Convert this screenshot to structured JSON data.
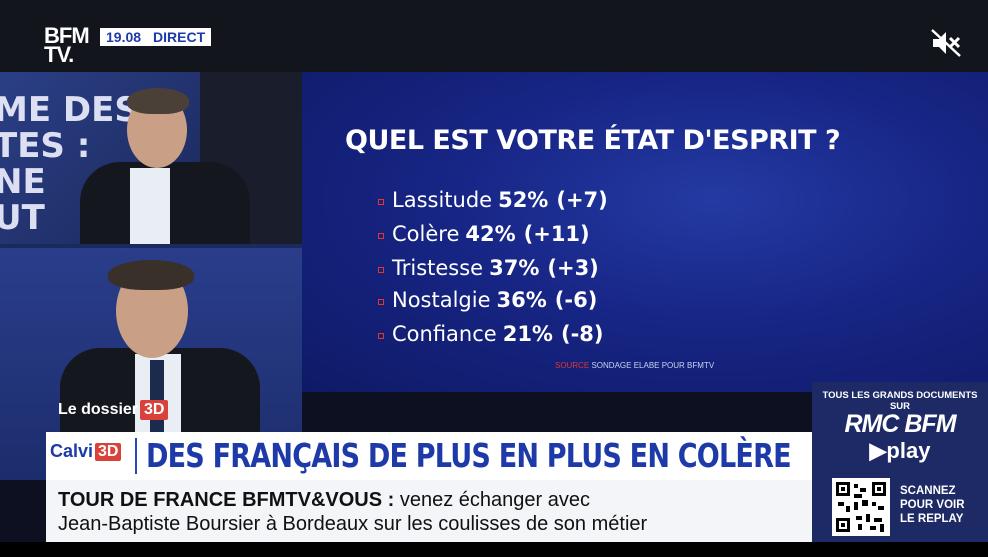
{
  "channel": {
    "logo_line1": "BFM",
    "logo_line2": "TV.",
    "time": "19.08",
    "live_label": "DIRECT",
    "mute_icon": "speaker-muted-icon"
  },
  "studio": {
    "background_text": [
      "ME DES",
      "TES :",
      "NE",
      "UT"
    ]
  },
  "poll": {
    "title": "QUEL EST VOTRE ÉTAT D'ESPRIT ?",
    "items": [
      {
        "label": "Lassitude",
        "pct": "52%",
        "change": "(+7)"
      },
      {
        "label": "Colère",
        "pct": "42%",
        "change": "(+11)"
      },
      {
        "label": "Tristesse",
        "pct": "37%",
        "change": "(+3)"
      },
      {
        "label": "Nostalgie",
        "pct": "36%",
        "change": "(-6)"
      },
      {
        "label": "Confiance",
        "pct": "21%",
        "change": "(-8)"
      }
    ],
    "source_label": "SOURCE",
    "source_text": "SONDAGE ELABE POUR BFMTV",
    "bullet_color": "#e2352e"
  },
  "segment": {
    "dossier_label": "Le dossier",
    "dossier_badge": "3D",
    "tag_label": "Calvi",
    "tag_badge": "3D",
    "headline": "DES FRANÇAIS DE PLUS EN PLUS EN COLÈRE"
  },
  "ticker": {
    "bold_text": "TOUR DE FRANCE BFMTV&VOUS :",
    "line1_rest": "venez échanger avec",
    "line2": "Jean-Baptiste Boursier à Bordeaux sur les coulisses de son métier"
  },
  "promo": {
    "top_text": "TOUS LES GRANDS DOCUMENTS SUR",
    "brand": "RMC BFM",
    "play": "▶play",
    "cta_line1": "SCANNEZ",
    "cta_line2": "POUR VOIR",
    "cta_line3": "LE REPLAY",
    "qr_icon": "qr-code-icon"
  },
  "colors": {
    "accent_blue": "#1d3aa8",
    "accent_red": "#d9423b"
  }
}
